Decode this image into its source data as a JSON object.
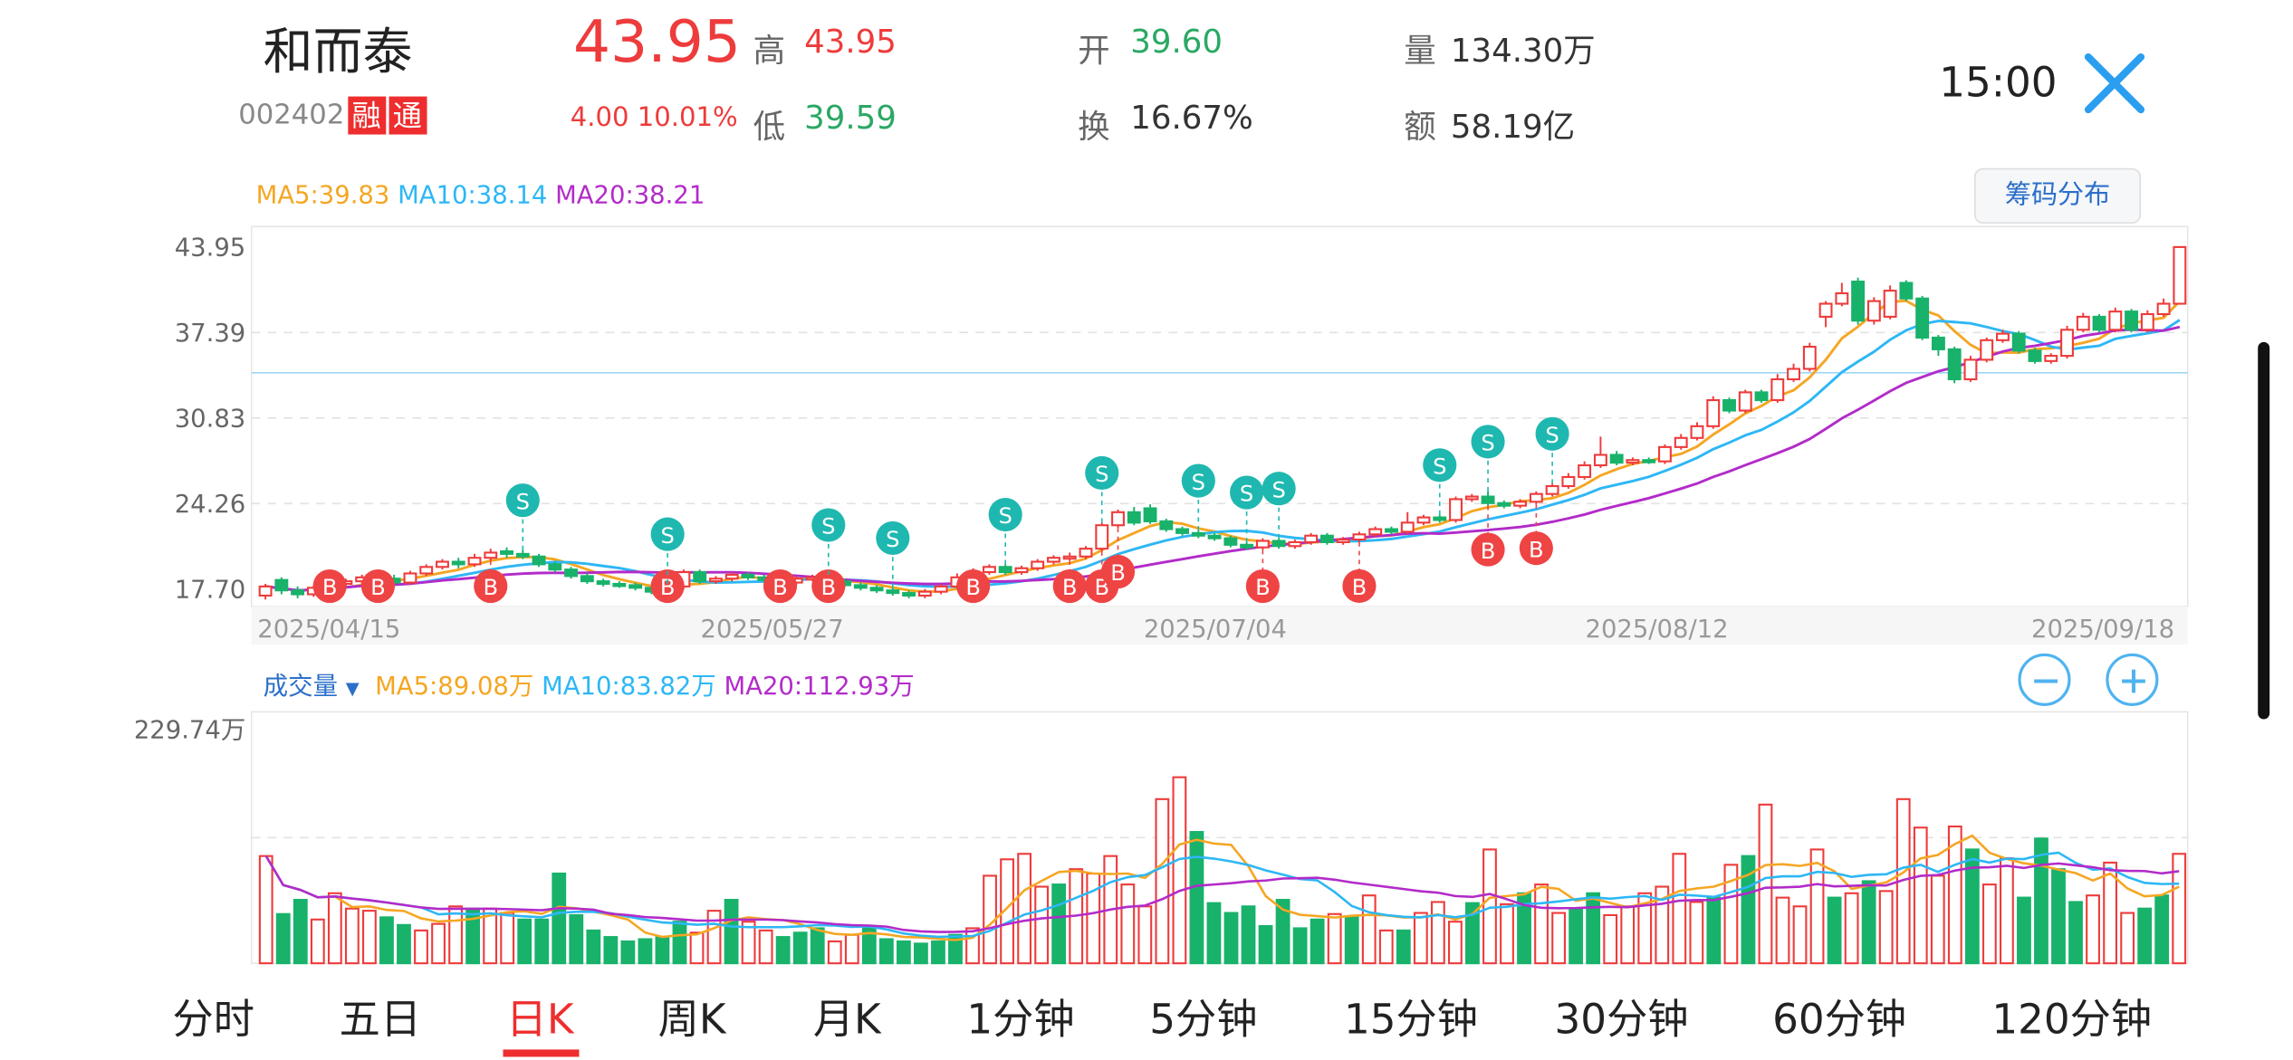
{
  "header": {
    "stock_name": "和而泰",
    "stock_code": "002402",
    "badge_rong": "融",
    "badge_tong": "通",
    "price": "43.95",
    "change": "4.00",
    "change_pct": "10.01%",
    "high_label": "高",
    "high_value": "43.95",
    "low_label": "低",
    "low_value": "39.59",
    "open_label": "开",
    "open_value": "39.60",
    "turnover_label": "换",
    "turnover_value": "16.67%",
    "volume_label": "量",
    "volume_value": "134.30万",
    "amount_label": "额",
    "amount_value": "58.19亿",
    "time": "15:00"
  },
  "price_ma": {
    "ma5": "MA5:39.83",
    "ma10": "MA10:38.14",
    "ma20": "MA20:38.21"
  },
  "chip_button": "筹码分布",
  "vol_ma": {
    "label": "成交量",
    "ma5": "MA5:89.08万",
    "ma10": "MA10:83.82万",
    "ma20": "MA20:112.93万"
  },
  "colors": {
    "up": "#ee3b3b",
    "down": "#18b26b",
    "ma5": "#f5a623",
    "ma10": "#2db7f5",
    "ma20": "#b22bc9",
    "accent": "#2b9ef0"
  },
  "tabs": [
    {
      "label": "分时",
      "active": false
    },
    {
      "label": "五日",
      "active": false
    },
    {
      "label": "日K",
      "active": true
    },
    {
      "label": "周K",
      "active": false
    },
    {
      "label": "月K",
      "active": false
    },
    {
      "label": "1分钟",
      "active": false
    },
    {
      "label": "5分钟",
      "active": false
    },
    {
      "label": "15分钟",
      "active": false
    },
    {
      "label": "30分钟",
      "active": false
    },
    {
      "label": "60分钟",
      "active": false
    },
    {
      "label": "120分钟",
      "active": false
    }
  ],
  "chart_data": [
    {
      "type": "candlestick",
      "y_ticks": [
        "43.95",
        "37.39",
        "30.83",
        "24.26",
        "17.70"
      ],
      "ylim": [
        17.7,
        43.95
      ],
      "x_ticks": [
        "2025/04/15",
        "2025/05/27",
        "2025/07/04",
        "2025/08/12",
        "2025/09/18"
      ],
      "candles": [
        {
          "o": 17.2,
          "c": 17.9,
          "h": 18.1,
          "l": 16.9
        },
        {
          "o": 18.4,
          "c": 17.6,
          "h": 18.6,
          "l": 17.3
        },
        {
          "o": 17.6,
          "c": 17.3,
          "h": 17.9,
          "l": 17.0
        },
        {
          "o": 17.3,
          "c": 17.8,
          "h": 18.0,
          "l": 17.1
        },
        {
          "o": 17.8,
          "c": 18.1,
          "h": 18.3,
          "l": 17.5
        },
        {
          "o": 18.1,
          "c": 18.3,
          "h": 18.5,
          "l": 17.9
        },
        {
          "o": 18.3,
          "c": 18.6,
          "h": 18.8,
          "l": 18.1
        },
        {
          "o": 18.6,
          "c": 18.5,
          "h": 18.9,
          "l": 18.2
        },
        {
          "o": 18.5,
          "c": 18.2,
          "h": 18.8,
          "l": 18.0
        },
        {
          "o": 18.2,
          "c": 18.9,
          "h": 19.1,
          "l": 18.0
        },
        {
          "o": 18.9,
          "c": 19.4,
          "h": 19.6,
          "l": 18.7
        },
        {
          "o": 19.4,
          "c": 19.8,
          "h": 20.0,
          "l": 19.2
        },
        {
          "o": 19.8,
          "c": 19.6,
          "h": 20.1,
          "l": 19.3
        },
        {
          "o": 19.6,
          "c": 20.1,
          "h": 20.4,
          "l": 19.4
        },
        {
          "o": 20.1,
          "c": 20.5,
          "h": 20.8,
          "l": 19.9
        },
        {
          "o": 20.6,
          "c": 20.4,
          "h": 20.9,
          "l": 20.1
        },
        {
          "o": 20.4,
          "c": 20.2,
          "h": 20.7,
          "l": 20.0
        },
        {
          "o": 20.2,
          "c": 19.6,
          "h": 20.4,
          "l": 19.4
        },
        {
          "o": 19.6,
          "c": 19.2,
          "h": 19.8,
          "l": 19.0
        },
        {
          "o": 19.2,
          "c": 18.7,
          "h": 19.4,
          "l": 18.5
        },
        {
          "o": 18.7,
          "c": 18.3,
          "h": 18.9,
          "l": 18.1
        },
        {
          "o": 18.3,
          "c": 18.1,
          "h": 18.5,
          "l": 17.9
        },
        {
          "o": 18.1,
          "c": 18.0,
          "h": 18.3,
          "l": 17.8
        },
        {
          "o": 18.0,
          "c": 17.8,
          "h": 18.2,
          "l": 17.6
        },
        {
          "o": 17.8,
          "c": 17.5,
          "h": 18.0,
          "l": 17.3
        },
        {
          "o": 17.5,
          "c": 17.9,
          "h": 18.1,
          "l": 17.3
        },
        {
          "o": 17.9,
          "c": 19.0,
          "h": 19.2,
          "l": 17.7
        },
        {
          "o": 19.0,
          "c": 18.3,
          "h": 19.2,
          "l": 18.1
        },
        {
          "o": 18.3,
          "c": 18.5,
          "h": 18.7,
          "l": 18.1
        },
        {
          "o": 18.5,
          "c": 18.8,
          "h": 19.0,
          "l": 18.3
        },
        {
          "o": 18.8,
          "c": 18.6,
          "h": 19.0,
          "l": 18.4
        },
        {
          "o": 18.6,
          "c": 18.4,
          "h": 18.8,
          "l": 18.2
        },
        {
          "o": 18.4,
          "c": 18.2,
          "h": 18.6,
          "l": 18.0
        },
        {
          "o": 18.2,
          "c": 18.5,
          "h": 18.7,
          "l": 18.0
        },
        {
          "o": 18.5,
          "c": 18.6,
          "h": 18.8,
          "l": 18.3
        },
        {
          "o": 18.6,
          "c": 18.3,
          "h": 18.8,
          "l": 18.1
        },
        {
          "o": 18.3,
          "c": 18.0,
          "h": 18.5,
          "l": 17.8
        },
        {
          "o": 18.0,
          "c": 17.8,
          "h": 18.2,
          "l": 17.6
        },
        {
          "o": 17.8,
          "c": 17.6,
          "h": 18.0,
          "l": 17.4
        },
        {
          "o": 17.6,
          "c": 17.4,
          "h": 17.8,
          "l": 17.2
        },
        {
          "o": 17.4,
          "c": 17.2,
          "h": 17.6,
          "l": 17.0
        },
        {
          "o": 17.2,
          "c": 17.5,
          "h": 17.7,
          "l": 17.0
        },
        {
          "o": 17.5,
          "c": 17.9,
          "h": 18.1,
          "l": 17.3
        },
        {
          "o": 17.9,
          "c": 18.6,
          "h": 18.9,
          "l": 17.7
        },
        {
          "o": 18.6,
          "c": 19.0,
          "h": 19.3,
          "l": 18.4
        },
        {
          "o": 19.0,
          "c": 19.4,
          "h": 19.6,
          "l": 18.8
        },
        {
          "o": 19.4,
          "c": 19.0,
          "h": 19.6,
          "l": 18.8
        },
        {
          "o": 19.0,
          "c": 19.3,
          "h": 19.5,
          "l": 18.8
        },
        {
          "o": 19.3,
          "c": 19.8,
          "h": 20.0,
          "l": 19.1
        },
        {
          "o": 19.8,
          "c": 20.1,
          "h": 20.3,
          "l": 19.6
        },
        {
          "o": 20.1,
          "c": 20.2,
          "h": 20.5,
          "l": 19.9
        },
        {
          "o": 20.2,
          "c": 20.8,
          "h": 21.0,
          "l": 20.0
        },
        {
          "o": 20.8,
          "c": 22.6,
          "h": 22.8,
          "l": 20.6
        },
        {
          "o": 22.6,
          "c": 23.6,
          "h": 23.8,
          "l": 22.4
        },
        {
          "o": 23.6,
          "c": 22.8,
          "h": 24.0,
          "l": 22.6
        },
        {
          "o": 23.9,
          "c": 22.9,
          "h": 24.2,
          "l": 22.7
        },
        {
          "o": 22.9,
          "c": 22.3,
          "h": 23.1,
          "l": 22.1
        },
        {
          "o": 22.3,
          "c": 22.0,
          "h": 22.5,
          "l": 21.8
        },
        {
          "o": 22.0,
          "c": 21.8,
          "h": 22.2,
          "l": 21.6
        },
        {
          "o": 21.8,
          "c": 21.6,
          "h": 22.0,
          "l": 21.4
        },
        {
          "o": 21.6,
          "c": 21.1,
          "h": 21.8,
          "l": 20.9
        },
        {
          "o": 21.1,
          "c": 20.9,
          "h": 21.3,
          "l": 20.7
        },
        {
          "o": 20.9,
          "c": 21.4,
          "h": 21.6,
          "l": 20.7
        },
        {
          "o": 21.4,
          "c": 21.0,
          "h": 21.6,
          "l": 20.8
        },
        {
          "o": 21.0,
          "c": 21.3,
          "h": 21.5,
          "l": 20.8
        },
        {
          "o": 21.3,
          "c": 21.8,
          "h": 22.0,
          "l": 21.1
        },
        {
          "o": 21.8,
          "c": 21.3,
          "h": 22.0,
          "l": 21.1
        },
        {
          "o": 21.3,
          "c": 21.5,
          "h": 21.7,
          "l": 21.1
        },
        {
          "o": 21.5,
          "c": 21.9,
          "h": 22.1,
          "l": 21.3
        },
        {
          "o": 21.9,
          "c": 22.3,
          "h": 22.5,
          "l": 21.7
        },
        {
          "o": 22.3,
          "c": 22.1,
          "h": 22.5,
          "l": 21.9
        },
        {
          "o": 22.1,
          "c": 22.8,
          "h": 23.6,
          "l": 21.9
        },
        {
          "o": 22.8,
          "c": 23.2,
          "h": 23.4,
          "l": 22.6
        },
        {
          "o": 23.2,
          "c": 23.0,
          "h": 23.4,
          "l": 22.8
        },
        {
          "o": 23.0,
          "c": 24.6,
          "h": 24.8,
          "l": 22.8
        },
        {
          "o": 24.6,
          "c": 24.8,
          "h": 25.0,
          "l": 24.4
        },
        {
          "o": 24.8,
          "c": 24.3,
          "h": 25.2,
          "l": 24.1
        },
        {
          "o": 24.3,
          "c": 24.1,
          "h": 24.5,
          "l": 23.9
        },
        {
          "o": 24.1,
          "c": 24.4,
          "h": 24.6,
          "l": 23.9
        },
        {
          "o": 24.4,
          "c": 25.0,
          "h": 25.2,
          "l": 24.2
        },
        {
          "o": 25.0,
          "c": 25.6,
          "h": 25.8,
          "l": 24.8
        },
        {
          "o": 25.6,
          "c": 26.3,
          "h": 26.6,
          "l": 25.4
        },
        {
          "o": 26.3,
          "c": 27.2,
          "h": 27.5,
          "l": 26.1
        },
        {
          "o": 27.2,
          "c": 28.0,
          "h": 29.4,
          "l": 27.0
        },
        {
          "o": 28.0,
          "c": 27.4,
          "h": 28.3,
          "l": 27.2
        },
        {
          "o": 27.4,
          "c": 27.6,
          "h": 27.8,
          "l": 27.2
        },
        {
          "o": 27.6,
          "c": 27.5,
          "h": 27.8,
          "l": 27.3
        },
        {
          "o": 27.5,
          "c": 28.6,
          "h": 28.8,
          "l": 27.3
        },
        {
          "o": 28.6,
          "c": 29.3,
          "h": 29.6,
          "l": 28.4
        },
        {
          "o": 29.3,
          "c": 30.2,
          "h": 30.5,
          "l": 29.1
        },
        {
          "o": 30.2,
          "c": 32.2,
          "h": 32.5,
          "l": 30.0
        },
        {
          "o": 32.2,
          "c": 31.4,
          "h": 32.4,
          "l": 31.2
        },
        {
          "o": 31.4,
          "c": 32.8,
          "h": 33.0,
          "l": 31.2
        },
        {
          "o": 32.8,
          "c": 32.2,
          "h": 33.0,
          "l": 32.0
        },
        {
          "o": 32.2,
          "c": 33.8,
          "h": 34.2,
          "l": 32.0
        },
        {
          "o": 33.8,
          "c": 34.6,
          "h": 35.0,
          "l": 33.6
        },
        {
          "o": 34.6,
          "c": 36.3,
          "h": 36.6,
          "l": 34.4
        },
        {
          "o": 38.6,
          "c": 39.6,
          "h": 39.8,
          "l": 37.8
        },
        {
          "o": 39.6,
          "c": 40.4,
          "h": 41.2,
          "l": 39.4
        },
        {
          "o": 41.3,
          "c": 38.3,
          "h": 41.6,
          "l": 38.0
        },
        {
          "o": 38.3,
          "c": 39.8,
          "h": 40.1,
          "l": 38.0
        },
        {
          "o": 38.6,
          "c": 40.6,
          "h": 41.0,
          "l": 38.4
        },
        {
          "o": 41.2,
          "c": 40.0,
          "h": 41.4,
          "l": 39.8
        },
        {
          "o": 40.0,
          "c": 37.0,
          "h": 40.2,
          "l": 36.8
        },
        {
          "o": 37.0,
          "c": 36.1,
          "h": 37.2,
          "l": 35.6
        },
        {
          "o": 36.1,
          "c": 33.8,
          "h": 36.3,
          "l": 33.5
        },
        {
          "o": 33.8,
          "c": 35.3,
          "h": 35.6,
          "l": 33.6
        },
        {
          "o": 35.3,
          "c": 36.8,
          "h": 37.0,
          "l": 35.1
        },
        {
          "o": 36.8,
          "c": 37.3,
          "h": 37.6,
          "l": 36.6
        },
        {
          "o": 37.3,
          "c": 36.0,
          "h": 37.5,
          "l": 35.8
        },
        {
          "o": 36.0,
          "c": 35.2,
          "h": 36.2,
          "l": 35.0
        },
        {
          "o": 35.2,
          "c": 35.6,
          "h": 35.8,
          "l": 35.0
        },
        {
          "o": 35.6,
          "c": 37.6,
          "h": 37.9,
          "l": 35.4
        },
        {
          "o": 37.6,
          "c": 38.6,
          "h": 38.9,
          "l": 37.4
        },
        {
          "o": 38.6,
          "c": 37.6,
          "h": 38.8,
          "l": 37.4
        },
        {
          "o": 37.6,
          "c": 39.0,
          "h": 39.3,
          "l": 37.4
        },
        {
          "o": 39.0,
          "c": 37.6,
          "h": 39.2,
          "l": 37.4
        },
        {
          "o": 37.6,
          "c": 38.8,
          "h": 39.1,
          "l": 37.4
        },
        {
          "o": 38.8,
          "c": 39.6,
          "h": 40.0,
          "l": 38.6
        },
        {
          "o": 39.6,
          "c": 43.95,
          "h": 43.95,
          "l": 39.59
        }
      ],
      "markers": [
        {
          "i": 4,
          "t": "B"
        },
        {
          "i": 7,
          "t": "B"
        },
        {
          "i": 14,
          "t": "B"
        },
        {
          "i": 16,
          "t": "S"
        },
        {
          "i": 25,
          "t": "B"
        },
        {
          "i": 25,
          "t": "S"
        },
        {
          "i": 32,
          "t": "B"
        },
        {
          "i": 35,
          "t": "B"
        },
        {
          "i": 35,
          "t": "S"
        },
        {
          "i": 39,
          "t": "S"
        },
        {
          "i": 44,
          "t": "B"
        },
        {
          "i": 46,
          "t": "S"
        },
        {
          "i": 50,
          "t": "B"
        },
        {
          "i": 52,
          "t": "B"
        },
        {
          "i": 53,
          "t": "B"
        },
        {
          "i": 52,
          "t": "S"
        },
        {
          "i": 58,
          "t": "S"
        },
        {
          "i": 62,
          "t": "B"
        },
        {
          "i": 61,
          "t": "S"
        },
        {
          "i": 63,
          "t": "S"
        },
        {
          "i": 68,
          "t": "B"
        },
        {
          "i": 73,
          "t": "S"
        },
        {
          "i": 76,
          "t": "S"
        },
        {
          "i": 79,
          "t": "B"
        },
        {
          "i": 80,
          "t": "S"
        },
        {
          "i": 76,
          "t": "B"
        }
      ]
    },
    {
      "type": "bar",
      "series_name": "成交量",
      "y_ticks": [
        "229.74万"
      ],
      "ylim": [
        0,
        229.74
      ],
      "values": [
        98,
        45,
        58,
        40,
        64,
        50,
        48,
        42,
        35,
        30,
        36,
        52,
        50,
        50,
        46,
        40,
        40,
        82,
        44,
        30,
        24,
        20,
        22,
        24,
        38,
        28,
        48,
        58,
        38,
        30,
        24,
        28,
        32,
        20,
        26,
        32,
        22,
        20,
        18,
        20,
        26,
        32,
        80,
        95,
        100,
        70,
        72,
        86,
        82,
        98,
        72,
        52,
        150,
        170,
        120,
        55,
        46,
        52,
        34,
        58,
        32,
        40,
        45,
        42,
        62,
        30,
        30,
        46,
        56,
        38,
        55,
        104,
        54,
        64,
        72,
        46,
        50,
        64,
        44,
        52,
        64,
        70,
        100,
        56,
        60,
        90,
        98,
        145,
        60,
        52,
        104,
        60,
        64,
        75,
        66,
        150,
        124,
        80,
        125,
        104,
        72,
        96,
        60,
        114,
        86,
        56,
        62,
        92,
        46,
        50,
        62,
        100
      ]
    }
  ]
}
